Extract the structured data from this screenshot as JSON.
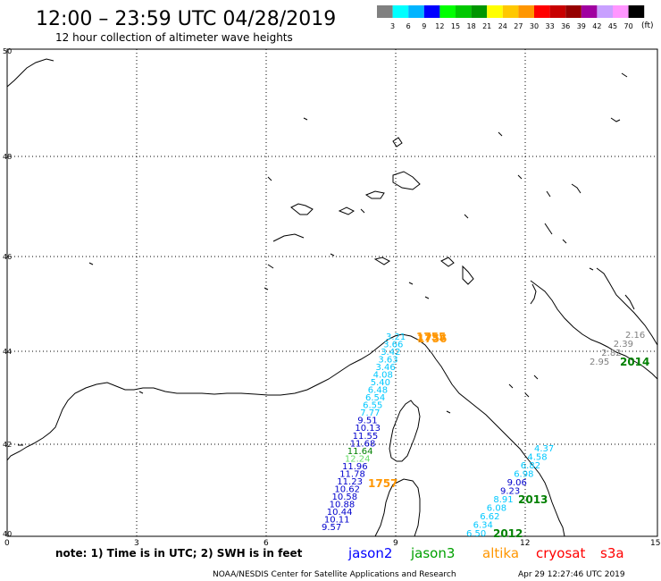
{
  "header": {
    "title": "12:00 – 23:59 UTC 04/28/2019",
    "subtitle": "12 hour collection of altimeter wave heights"
  },
  "legend": {
    "unit": "(ft)",
    "labels": [
      "3",
      "6",
      "9",
      "12",
      "15",
      "18",
      "21",
      "24",
      "27",
      "30",
      "33",
      "36",
      "39",
      "42",
      "45",
      "70"
    ],
    "colors": [
      "#808080",
      "#00ffff",
      "#00b4ff",
      "#0000ff",
      "#00ff00",
      "#00c800",
      "#009600",
      "#ffff00",
      "#ffc800",
      "#ff9600",
      "#ff0000",
      "#c80000",
      "#960000",
      "#a000a0",
      "#c8a0ff",
      "#ff96ff",
      "#000000"
    ]
  },
  "axes": {
    "y_labels": [
      "50",
      "48",
      "46",
      "44",
      "42",
      "40"
    ],
    "x_labels": [
      "0",
      "3",
      "6",
      "9",
      "12",
      "15"
    ]
  },
  "tracks": [
    {
      "id": "jason3-west",
      "label": "1755",
      "label_color": "#ff9600",
      "points": [
        {
          "v": "3.21",
          "c": "#00c8ff"
        },
        {
          "v": "3.66",
          "c": "#00c8ff"
        },
        {
          "v": "3.42",
          "c": "#00c8ff"
        },
        {
          "v": "3.63",
          "c": "#00c8ff"
        },
        {
          "v": "3.46",
          "c": "#00c8ff"
        },
        {
          "v": "4.08",
          "c": "#00c8ff"
        },
        {
          "v": "5.40",
          "c": "#00c8ff"
        },
        {
          "v": "6.48",
          "c": "#00c8ff"
        },
        {
          "v": "6.54",
          "c": "#00c8ff"
        },
        {
          "v": "6.55",
          "c": "#00c8ff"
        },
        {
          "v": "7.77",
          "c": "#00c8ff"
        },
        {
          "v": "9.51",
          "c": "#0000cc"
        },
        {
          "v": "10.13",
          "c": "#0000cc"
        },
        {
          "v": "11.55",
          "c": "#0000cc"
        },
        {
          "v": "11.68",
          "c": "#0000cc"
        },
        {
          "v": "11.64",
          "c": "#008000"
        },
        {
          "v": "12.24",
          "c": "#66dd66"
        },
        {
          "v": "11.96",
          "c": "#0000cc"
        },
        {
          "v": "11.78",
          "c": "#0000cc"
        },
        {
          "v": "11.23",
          "c": "#0000cc"
        },
        {
          "v": "10.62",
          "c": "#0000cc"
        },
        {
          "v": "10.58",
          "c": "#0000cc"
        },
        {
          "v": "10.88",
          "c": "#0000cc"
        },
        {
          "v": "10.44",
          "c": "#0000cc"
        },
        {
          "v": "10.11",
          "c": "#0000cc"
        },
        {
          "v": "9.57",
          "c": "#0000cc"
        }
      ]
    },
    {
      "id": "jason3-east",
      "label": "2013",
      "label_color": "#008000",
      "points": [
        {
          "v": "4.37",
          "c": "#00c8ff"
        },
        {
          "v": "4.58",
          "c": "#00c8ff"
        },
        {
          "v": "6.82",
          "c": "#00c8ff"
        },
        {
          "v": "6.98",
          "c": "#00c8ff"
        },
        {
          "v": "9.06",
          "c": "#0000cc"
        },
        {
          "v": "9.23",
          "c": "#0000cc"
        },
        {
          "v": "8.91",
          "c": "#00c8ff"
        },
        {
          "v": "6.08",
          "c": "#00c8ff"
        },
        {
          "v": "6.62",
          "c": "#00c8ff"
        },
        {
          "v": "6.34",
          "c": "#00c8ff"
        },
        {
          "v": "6.50",
          "c": "#00c8ff"
        }
      ]
    },
    {
      "id": "adriatic",
      "label": "2014",
      "label_color": "#008000",
      "points": [
        {
          "v": "2.16",
          "c": "#808080"
        },
        {
          "v": "2.39",
          "c": "#808080"
        },
        {
          "v": "2.82",
          "c": "#808080"
        },
        {
          "v": "2.95",
          "c": "#808080"
        }
      ]
    }
  ],
  "extra_labels": {
    "orange_south": "1757",
    "orange_north": "1756",
    "green_south": "2012"
  },
  "footer": {
    "note": "note:  1) Time is in UTC;  2) SWH is in feet",
    "sat_jason2": "jason2",
    "sat_jason3": "jason3",
    "sat_altika": "altika",
    "sat_cryosat": "cryosat",
    "sat_s3a": "s3a",
    "credit": "NOAA/NESDIS Center for Satellite Applications and Research",
    "timestamp": "Apr 29 12:27:46 UTC 2019"
  },
  "colors": {
    "jason2": "#0000ff",
    "jason3": "#00a000",
    "altika": "#ff9600",
    "cryosat": "#ff0000",
    "s3a": "#ff0000"
  }
}
